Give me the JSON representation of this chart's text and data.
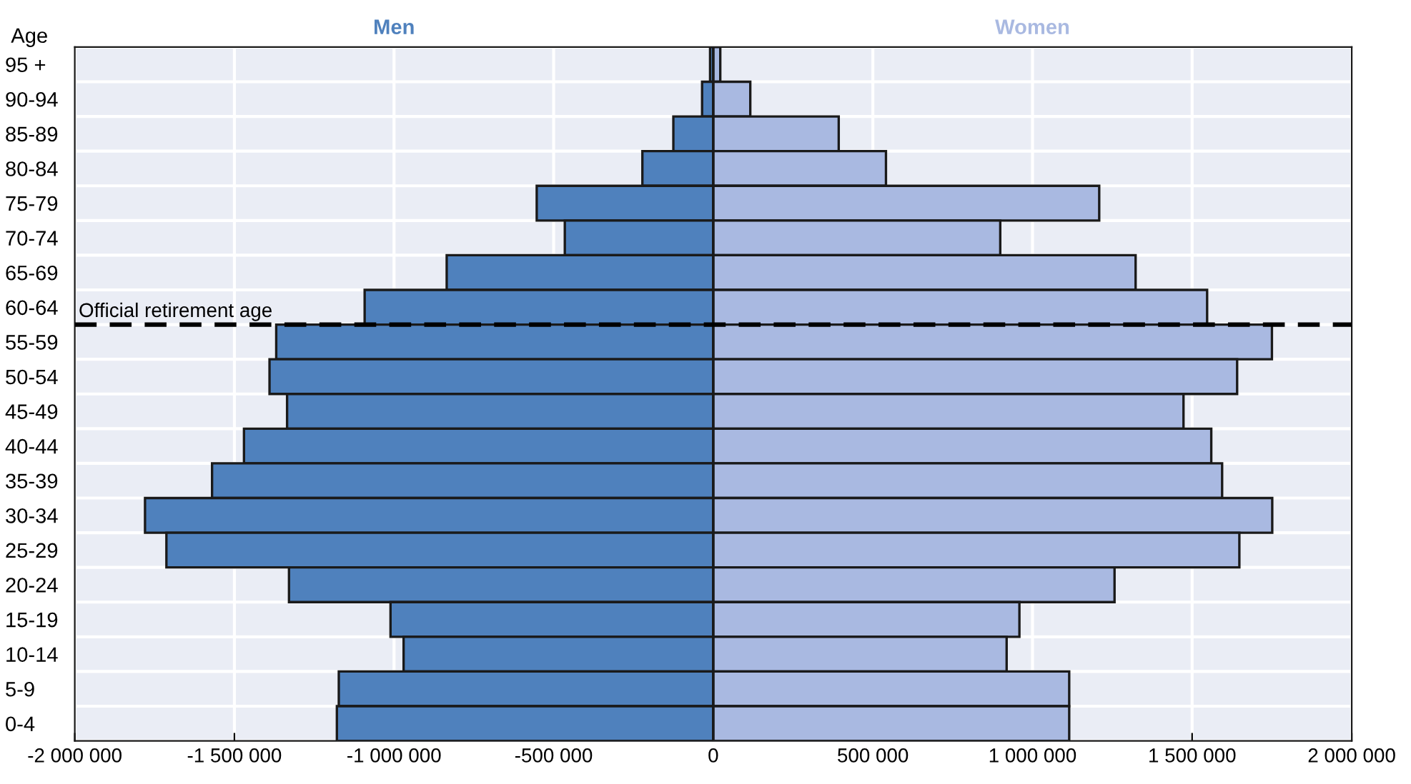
{
  "chart_data": {
    "type": "bar",
    "orientation": "horizontal",
    "ylabel": "Age",
    "categories": [
      "95 +",
      "90-94",
      "85-89",
      "80-84",
      "75-79",
      "70-74",
      "65-69",
      "60-64",
      "55-59",
      "50-54",
      "45-49",
      "40-44",
      "35-39",
      "30-34",
      "25-29",
      "20-24",
      "15-19",
      "10-14",
      "5-9",
      "0-4"
    ],
    "series": [
      {
        "name": "Men",
        "color": "#4f81bd",
        "values": [
          -10000,
          -35000,
          -125000,
          -222000,
          -553000,
          -465000,
          -835000,
          -1092000,
          -1369000,
          -1390000,
          -1335000,
          -1470000,
          -1570000,
          -1780000,
          -1713000,
          -1329000,
          -1011000,
          -970000,
          -1173000,
          -1179000
        ]
      },
      {
        "name": "Women",
        "color": "#a9b9e1",
        "values": [
          22000,
          116000,
          393000,
          541000,
          1209000,
          899000,
          1323000,
          1547000,
          1750000,
          1641000,
          1473000,
          1560000,
          1594000,
          1751000,
          1648000,
          1257000,
          959000,
          919000,
          1115000,
          1115000
        ]
      }
    ],
    "xlim": [
      -2000000,
      2000000
    ],
    "xticks": [
      {
        "value": -2000000,
        "label": "-2 000 000"
      },
      {
        "value": -1500000,
        "label": "-1 500 000"
      },
      {
        "value": -1000000,
        "label": "-1 000 000"
      },
      {
        "value": -500000,
        "label": "-500 000"
      },
      0,
      {
        "value": 500000,
        "label": "500 000"
      },
      {
        "value": 1000000,
        "label": "1 000 000"
      },
      {
        "value": 1500000,
        "label": "1 500 000"
      },
      {
        "value": 2000000,
        "label": "2 000 000"
      }
    ],
    "ref_lines": [
      {
        "axis": "y",
        "value": "60-64",
        "label": "Official retirement age",
        "color": "#000000",
        "line_style": "dashed"
      }
    ],
    "stacked": true,
    "grid": true,
    "legend": false
  }
}
